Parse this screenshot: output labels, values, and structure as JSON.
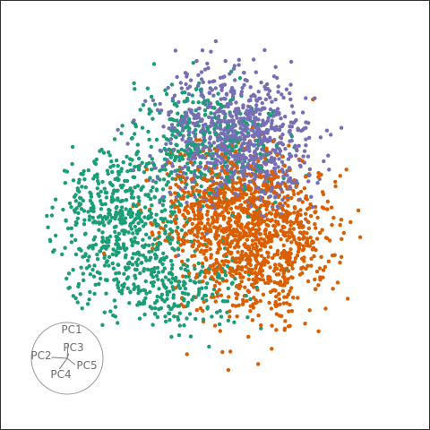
{
  "chart_data": {
    "type": "scatter",
    "title": "",
    "xlabel": "",
    "ylabel": "",
    "xlim": [
      -1,
      1
    ],
    "ylim": [
      -1,
      1
    ],
    "grid": false,
    "legend": "none",
    "series": [
      {
        "name": "green cluster",
        "color": "#1b9e77",
        "count": 1100,
        "clusters": [
          {
            "cx": -0.52,
            "cy": -0.05,
            "sx": 0.18,
            "sy": 0.2,
            "w": 0.45
          },
          {
            "cx": -0.08,
            "cy": 0.38,
            "sx": 0.2,
            "sy": 0.18,
            "w": 0.3
          },
          {
            "cx": -0.25,
            "cy": -0.42,
            "sx": 0.2,
            "sy": 0.12,
            "w": 0.25
          }
        ]
      },
      {
        "name": "purple cluster",
        "color": "#7570b3",
        "count": 900,
        "clusters": [
          {
            "cx": 0.05,
            "cy": 0.48,
            "sx": 0.2,
            "sy": 0.18,
            "w": 0.7
          },
          {
            "cx": 0.28,
            "cy": 0.3,
            "sx": 0.15,
            "sy": 0.15,
            "w": 0.3
          }
        ]
      },
      {
        "name": "orange cluster",
        "color": "#d95f02",
        "count": 1300,
        "clusters": [
          {
            "cx": 0.25,
            "cy": -0.15,
            "sx": 0.2,
            "sy": 0.22,
            "w": 0.65
          },
          {
            "cx": 0.05,
            "cy": 0.05,
            "sx": 0.2,
            "sy": 0.16,
            "w": 0.35
          }
        ]
      }
    ],
    "loadings": [
      {
        "label": "PC1",
        "dx": 0.05,
        "dy": 0.78
      },
      {
        "label": "PC2",
        "dx": -0.8,
        "dy": 0.05
      },
      {
        "label": "PC3",
        "dx": 0.08,
        "dy": 0.25
      },
      {
        "label": "PC4",
        "dx": -0.4,
        "dy": -0.55
      },
      {
        "label": "PC5",
        "dx": 0.4,
        "dy": -0.32
      }
    ]
  }
}
